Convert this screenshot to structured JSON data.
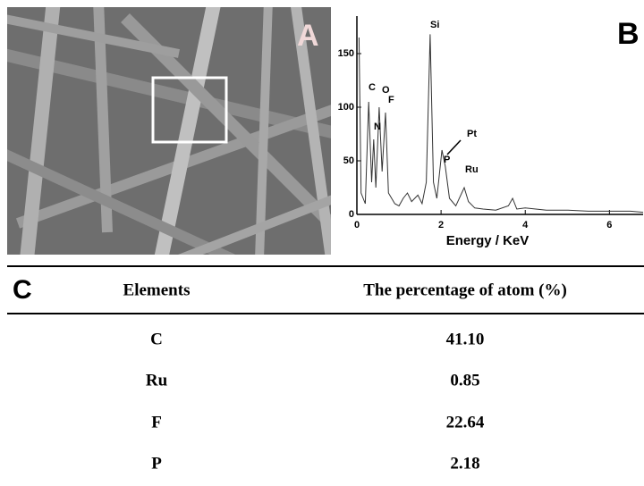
{
  "panel_a": {
    "label": "A"
  },
  "spectrum": {
    "type": "line",
    "label": "B",
    "xlabel": "Energy / KeV",
    "x": [
      0.05,
      0.1,
      0.2,
      0.28,
      0.35,
      0.4,
      0.45,
      0.53,
      0.6,
      0.68,
      0.75,
      0.9,
      1.0,
      1.1,
      1.2,
      1.3,
      1.45,
      1.55,
      1.65,
      1.74,
      1.82,
      1.9,
      2.02,
      2.1,
      2.2,
      2.35,
      2.55,
      2.65,
      2.8,
      3.0,
      3.3,
      3.6,
      3.7,
      3.8,
      4.0,
      4.5,
      5.0,
      5.5,
      6.0,
      6.5,
      6.8
    ],
    "values": [
      165,
      20,
      10,
      105,
      30,
      70,
      25,
      100,
      40,
      95,
      20,
      10,
      8,
      15,
      20,
      12,
      18,
      10,
      30,
      168,
      30,
      15,
      60,
      45,
      15,
      8,
      25,
      12,
      6,
      5,
      4,
      8,
      15,
      5,
      6,
      4,
      4,
      3,
      3,
      3,
      2
    ],
    "color": "#333333",
    "xlim": [
      0,
      6.8
    ],
    "ylim": [
      0,
      185
    ],
    "xticks": [
      0,
      2,
      4,
      6
    ],
    "yticks": [
      0,
      50,
      100,
      150
    ],
    "annotations": [
      "Si",
      "C",
      "O",
      "F",
      "N",
      "P",
      "Pt",
      "Ru"
    ]
  },
  "table": {
    "label": "C",
    "header": [
      "Elements",
      "The percentage of atom (%)"
    ],
    "rows": [
      [
        "C",
        "41.10"
      ],
      [
        "Ru",
        "0.85"
      ],
      [
        "F",
        "22.64"
      ],
      [
        "P",
        "2.18"
      ]
    ]
  }
}
